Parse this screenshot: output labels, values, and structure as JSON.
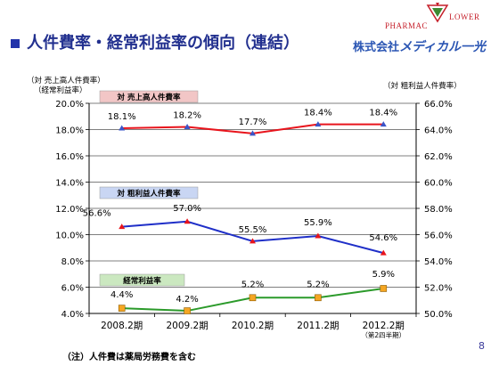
{
  "header": {
    "title": "人件費率・経常利益率の傾向（連結）",
    "company_prefix": "株式会社",
    "company_name": "メディカル一光",
    "logo_line1": "PHARMAC",
    "logo_line2": "LOWER"
  },
  "footnote": "（注）人件費は薬局労務費を含む",
  "page_number": "8",
  "colors": {
    "title": "#22308f",
    "sales_ratio": "#e8141c",
    "gross_ratio": "#1f2fc8",
    "ordinary_margin": "#2b9a2a",
    "box_red": "#f2c6c6",
    "box_blue": "#c9d6f3",
    "box_green": "#cbe8c0"
  },
  "chart_data": {
    "type": "line",
    "categories": [
      "2008.2期",
      "2009.2期",
      "2010.2期",
      "2011.2期",
      "2012.2期"
    ],
    "category_note": "（第2四半期）",
    "left_axis_label": [
      "（対 売上高人件費率）",
      "（経常利益率）"
    ],
    "right_axis_label": "（対 粗利益人件費率）",
    "left_ylim": [
      4.0,
      20.0
    ],
    "left_ticks": [
      "4.0%",
      "6.0%",
      "8.0%",
      "10.0%",
      "12.0%",
      "14.0%",
      "16.0%",
      "18.0%",
      "20.0%"
    ],
    "right_ylim": [
      50.0,
      66.0
    ],
    "right_ticks": [
      "50.0%",
      "52.0%",
      "54.0%",
      "56.0%",
      "58.0%",
      "60.0%",
      "62.0%",
      "64.0%",
      "66.0%"
    ],
    "series": [
      {
        "name": "対 売上高人件費率",
        "axis": "left",
        "values": [
          18.1,
          18.2,
          17.7,
          18.4,
          18.4
        ],
        "labels": [
          "18.1%",
          "18.2%",
          "17.7%",
          "18.4%",
          "18.4%"
        ],
        "color": "#e8141c",
        "marker": "triangle",
        "marker_color": "#3a55c8"
      },
      {
        "name": "対 粗利益人件費率",
        "axis": "right",
        "values": [
          56.6,
          57.0,
          55.5,
          55.9,
          54.6
        ],
        "labels": [
          "56.6%",
          "57.0%",
          "55.5%",
          "55.9%",
          "54.6%"
        ],
        "color": "#1f2fc8",
        "marker": "triangle",
        "marker_color": "#e8141c"
      },
      {
        "name": "経常利益率",
        "axis": "left",
        "values": [
          4.4,
          4.2,
          5.2,
          5.2,
          5.9
        ],
        "labels": [
          "4.4%",
          "4.2%",
          "5.2%",
          "5.2%",
          "5.9%"
        ],
        "color": "#2b9a2a",
        "marker": "square",
        "marker_color": "#f5a623"
      }
    ]
  }
}
